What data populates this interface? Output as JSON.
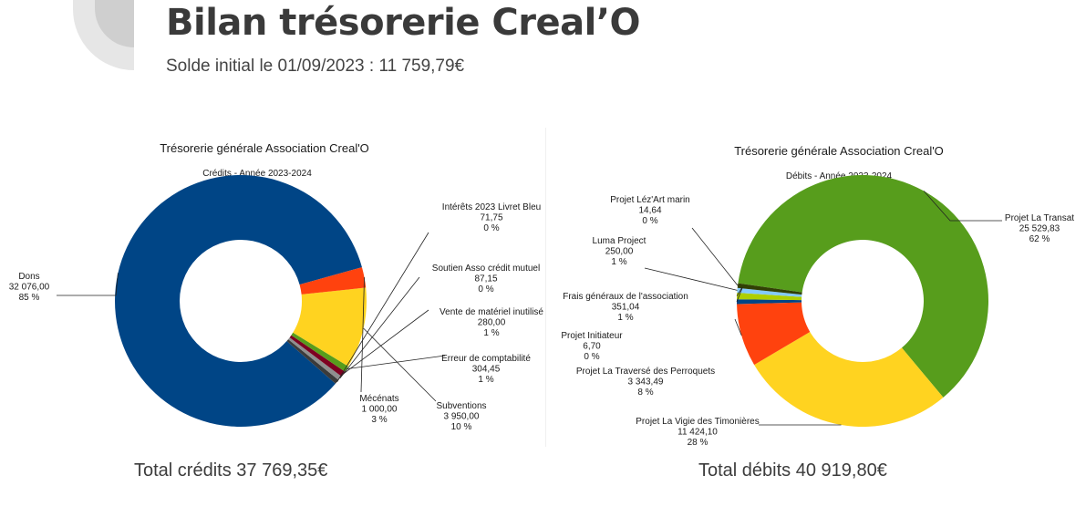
{
  "header": {
    "title": "Bilan trésorerie Creal’O",
    "subtitle": "Solde initial le 01/09/2023 : 11 759,79€"
  },
  "totals": {
    "credits": "Total crédits 37 769,35€",
    "debits": "Total débits 40 919,80€"
  },
  "chart_data": [
    {
      "type": "pie",
      "title": "Trésorerie générale Association Creal'O",
      "subtitle": "Crédits - Année 2023-2024",
      "donut": true,
      "slices": [
        {
          "name": "Dons",
          "value": 32076.0,
          "value_label": "32 076,00",
          "pct_label": "85 %",
          "color": "#004586"
        },
        {
          "name": "Intérêts 2023 Livret Bleu",
          "value": 71.75,
          "value_label": "71,75",
          "pct_label": "0 %",
          "color": "#3b3b3b"
        },
        {
          "name": "Soutien Asso crédit mutuel",
          "value": 87.15,
          "value_label": "87,15",
          "pct_label": "0 %",
          "color": "#8f8f8f"
        },
        {
          "name": "Vente de matériel inutilisé",
          "value": 280.0,
          "value_label": "280,00",
          "pct_label": "1 %",
          "color": "#7e0021"
        },
        {
          "name": "Erreur de comptabilité",
          "value": 304.45,
          "value_label": "304,45",
          "pct_label": "1 %",
          "color": "#579d1c"
        },
        {
          "name": "Subventions",
          "value": 3950.0,
          "value_label": "3 950,00",
          "pct_label": "10 %",
          "color": "#ffd320"
        },
        {
          "name": "Mécénats",
          "value": 1000.0,
          "value_label": "1 000,00",
          "pct_label": "3 %",
          "color": "#ff420e"
        }
      ]
    },
    {
      "type": "pie",
      "title": "Trésorerie générale Association Creal'O",
      "subtitle": "Débits - Année 2023-2024",
      "donut": true,
      "slices": [
        {
          "name": "Projet La Transat",
          "value": 25529.83,
          "value_label": "25 529,83",
          "pct_label": "62 %",
          "color": "#579d1c"
        },
        {
          "name": "Projet La Vigie des Timonières",
          "value": 11424.1,
          "value_label": "11 424,10",
          "pct_label": "28 %",
          "color": "#ffd320"
        },
        {
          "name": "Projet La Traversé des Perroquets",
          "value": 3343.49,
          "value_label": "3 343,49",
          "pct_label": "8 %",
          "color": "#ff420e"
        },
        {
          "name": "Projet Initiateur",
          "value": 6.7,
          "value_label": "6,70",
          "pct_label": "0 %",
          "color": "#004586"
        },
        {
          "name": "Frais généraux de l'association",
          "value": 351.04,
          "value_label": "351,04",
          "pct_label": "1 %",
          "color": "#aecf00"
        },
        {
          "name": "Luma Project",
          "value": 250.0,
          "value_label": "250,00",
          "pct_label": "1 %",
          "color": "#83caff"
        },
        {
          "name": "Projet Léz'Art marin",
          "value": 14.64,
          "value_label": "14,64",
          "pct_label": "0 %",
          "color": "#314004"
        }
      ]
    }
  ]
}
